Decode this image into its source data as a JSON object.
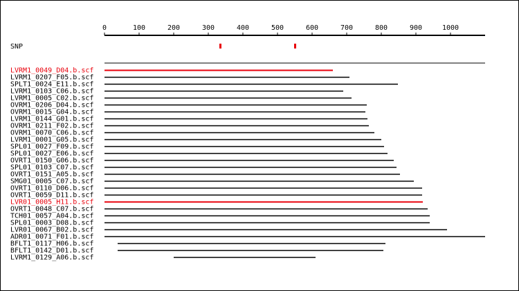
{
  "colors": {
    "normal": "#000000",
    "highlight": "#e8000b"
  },
  "scale": {
    "min": 0,
    "max": 1100,
    "ticks": [
      0,
      100,
      200,
      300,
      400,
      500,
      600,
      700,
      800,
      900,
      1000
    ]
  },
  "snp": {
    "label": "SNP",
    "positions": [
      334,
      550
    ]
  },
  "reads": [
    {
      "name": "LVRM1_0049_D04.b.scf",
      "start": 0,
      "end": 660,
      "highlight": true
    },
    {
      "name": "LVRM1_0207_F05.b.scf",
      "start": 0,
      "end": 708,
      "highlight": false
    },
    {
      "name": "SPLT1_0024_E11.b.scf",
      "start": 0,
      "end": 848,
      "highlight": false
    },
    {
      "name": "LVRM1_0103_C06.b.scf",
      "start": 0,
      "end": 690,
      "highlight": false
    },
    {
      "name": "LVRM1_0005_C02.b.scf",
      "start": 0,
      "end": 714,
      "highlight": false
    },
    {
      "name": "OVRM1_0206_D04.b.scf",
      "start": 0,
      "end": 758,
      "highlight": false
    },
    {
      "name": "OVRM1_0015_G04.b.scf",
      "start": 0,
      "end": 754,
      "highlight": false
    },
    {
      "name": "LVRM1_0144_G01.b.scf",
      "start": 0,
      "end": 760,
      "highlight": false
    },
    {
      "name": "OVRM1_0211_F02.b.scf",
      "start": 0,
      "end": 764,
      "highlight": false
    },
    {
      "name": "OVRM1_0070_C06.b.scf",
      "start": 0,
      "end": 780,
      "highlight": false
    },
    {
      "name": "LVRM1_0001_G05.b.scf",
      "start": 0,
      "end": 800,
      "highlight": false
    },
    {
      "name": "SPL01_0027_F09.b.scf",
      "start": 0,
      "end": 808,
      "highlight": false
    },
    {
      "name": "SPL01_0027_E06.b.scf",
      "start": 0,
      "end": 818,
      "highlight": false
    },
    {
      "name": "OVRT1_0150_G06.b.scf",
      "start": 0,
      "end": 836,
      "highlight": false
    },
    {
      "name": "SPL01_0103_C07.b.scf",
      "start": 0,
      "end": 844,
      "highlight": false
    },
    {
      "name": "OVRT1_0151_A05.b.scf",
      "start": 0,
      "end": 854,
      "highlight": false
    },
    {
      "name": "SMG01_0005_C07.b.scf",
      "start": 0,
      "end": 894,
      "highlight": false
    },
    {
      "name": "OVRT1_0110_D06.b.scf",
      "start": 0,
      "end": 918,
      "highlight": false
    },
    {
      "name": "OVRT1_0059_D11.b.scf",
      "start": 0,
      "end": 918,
      "highlight": false
    },
    {
      "name": "LVR01_0005_H11.b.scf",
      "start": 0,
      "end": 920,
      "highlight": true
    },
    {
      "name": "OVRT1_0048_C07.b.scf",
      "start": 0,
      "end": 934,
      "highlight": false
    },
    {
      "name": "TCH01_0057_A04.b.scf",
      "start": 0,
      "end": 940,
      "highlight": false
    },
    {
      "name": "SPL01_0003_D08.b.scf",
      "start": 0,
      "end": 940,
      "highlight": false
    },
    {
      "name": "LVR01_0067_B02.b.scf",
      "start": 0,
      "end": 990,
      "highlight": false
    },
    {
      "name": "ADR01_0071_F01.b.scf",
      "start": 0,
      "end": 1100,
      "highlight": false
    },
    {
      "name": "BFLT1_0117_H06.b.scf",
      "start": 38,
      "end": 812,
      "highlight": false
    },
    {
      "name": "BFLT1_0142_D01.b.scf",
      "start": 38,
      "end": 806,
      "highlight": false
    },
    {
      "name": "LVRM1_0129_A06.b.scf",
      "start": 200,
      "end": 610,
      "highlight": false
    }
  ]
}
